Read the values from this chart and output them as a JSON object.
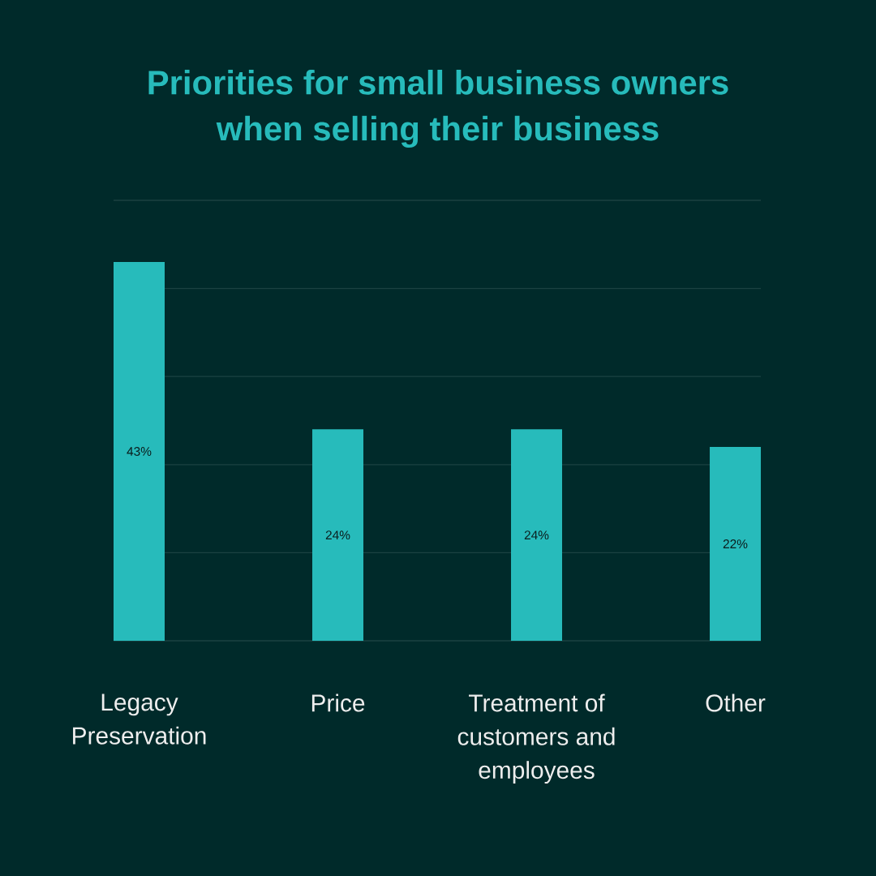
{
  "chart_data": {
    "type": "bar",
    "title": "Priorities for small business owners when selling their business",
    "categories": [
      "Legacy Preservation",
      "Price",
      "Treatment of customers and employees",
      "Other"
    ],
    "values": [
      43,
      24,
      24,
      22
    ],
    "value_labels": [
      "43%",
      "24%",
      "24%",
      "22%"
    ],
    "color": "#27bbbb",
    "ylim": [
      0,
      50
    ],
    "yticks": [
      {
        "value": 0,
        "label": null
      },
      {
        "value": 10,
        "label": null
      },
      {
        "value": 20,
        "label": null
      },
      {
        "value": 30,
        "label": null
      },
      {
        "value": 40,
        "label": null
      },
      {
        "value": 50,
        "label": null
      }
    ],
    "grid": "y",
    "tick_labels": "x"
  }
}
